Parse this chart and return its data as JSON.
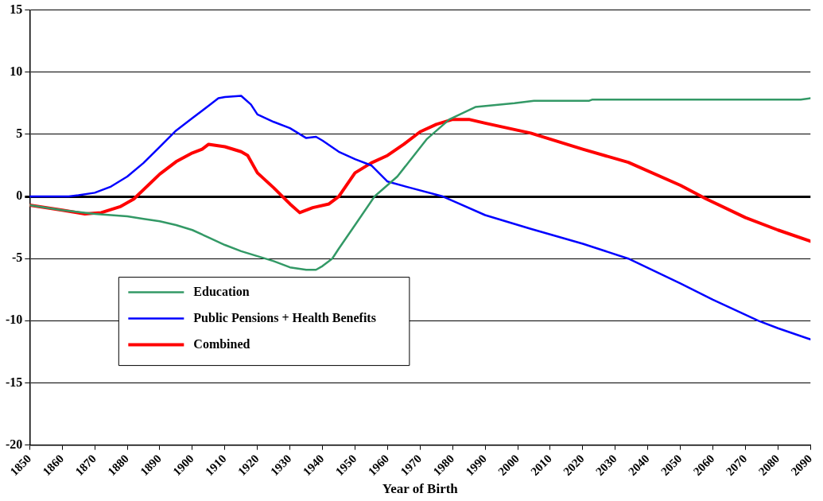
{
  "chart_data": {
    "type": "line",
    "xlabel": "Year of Birth",
    "xlim": [
      1850,
      2090
    ],
    "xticks": [
      1850,
      1860,
      1870,
      1880,
      1890,
      1900,
      1910,
      1920,
      1930,
      1940,
      1950,
      1960,
      1970,
      1980,
      1990,
      2000,
      2010,
      2020,
      2030,
      2040,
      2050,
      2060,
      2070,
      2080,
      2090
    ],
    "ylim": [
      -20,
      15
    ],
    "yticks": [
      -20,
      -15,
      -10,
      -5,
      0,
      5,
      10,
      15
    ],
    "grid": "y",
    "legend": "bottom left",
    "marker": "none",
    "line_style": "solid",
    "series": [
      {
        "name": "Education",
        "color": "#339966",
        "x": [
          1850,
          1860,
          1870,
          1875,
          1880,
          1885,
          1890,
          1895,
          1900,
          1905,
          1910,
          1915,
          1920,
          1925,
          1930,
          1935,
          1938,
          1940,
          1943,
          1945,
          1950,
          1956,
          1963,
          1972,
          1979,
          1987,
          1999,
          2005,
          2022,
          2023,
          2087,
          2090
        ],
        "values": [
          -0.7,
          -1.1,
          -1.4,
          -1.5,
          -1.6,
          -1.8,
          -2.0,
          -2.3,
          -2.7,
          -3.3,
          -3.9,
          -4.4,
          -4.8,
          -5.2,
          -5.7,
          -5.9,
          -5.9,
          -5.6,
          -5.0,
          -4.2,
          -2.3,
          0.0,
          1.6,
          4.6,
          6.2,
          7.2,
          7.5,
          7.7,
          7.7,
          7.8,
          7.8,
          7.9
        ]
      },
      {
        "name": "Public Pensions + Health Benefits",
        "color": "#0000ff",
        "x": [
          1850,
          1862,
          1865,
          1870,
          1875,
          1880,
          1885,
          1890,
          1895,
          1900,
          1905,
          1908,
          1910,
          1915,
          1918,
          1920,
          1925,
          1930,
          1935,
          1938,
          1940,
          1945,
          1950,
          1955,
          1960,
          1967,
          1977,
          1990,
          2004,
          2020,
          2034,
          2050,
          2060,
          2074,
          2080,
          2090
        ],
        "values": [
          0,
          0,
          0.1,
          0.3,
          0.8,
          1.6,
          2.7,
          4.0,
          5.3,
          6.3,
          7.3,
          7.9,
          8.0,
          8.1,
          7.4,
          6.6,
          6.0,
          5.5,
          4.7,
          4.8,
          4.5,
          3.6,
          3.0,
          2.5,
          1.2,
          0.7,
          0.0,
          -1.5,
          -2.6,
          -3.8,
          -5.0,
          -7.0,
          -8.3,
          -10.0,
          -10.6,
          -11.5
        ]
      },
      {
        "name": "Combined",
        "color": "#ff0000",
        "x": [
          1850,
          1860,
          1867,
          1872,
          1878,
          1882,
          1890,
          1895,
          1900,
          1903,
          1905,
          1910,
          1915,
          1917,
          1920,
          1925,
          1930,
          1933,
          1937,
          1942,
          1945,
          1950,
          1955,
          1960,
          1965,
          1970,
          1975,
          1980,
          1985,
          1990,
          2004,
          2020,
          2034,
          2050,
          2058,
          2070,
          2080,
          2090
        ],
        "values": [
          -0.7,
          -1.1,
          -1.4,
          -1.3,
          -0.8,
          -0.2,
          1.8,
          2.8,
          3.5,
          3.8,
          4.2,
          4.0,
          3.6,
          3.3,
          1.9,
          0.7,
          -0.6,
          -1.3,
          -0.9,
          -0.6,
          0.0,
          1.9,
          2.7,
          3.3,
          4.2,
          5.2,
          5.8,
          6.2,
          6.2,
          5.9,
          5.1,
          3.8,
          2.75,
          0.9,
          -0.2,
          -1.7,
          -2.7,
          -3.6
        ]
      }
    ]
  }
}
